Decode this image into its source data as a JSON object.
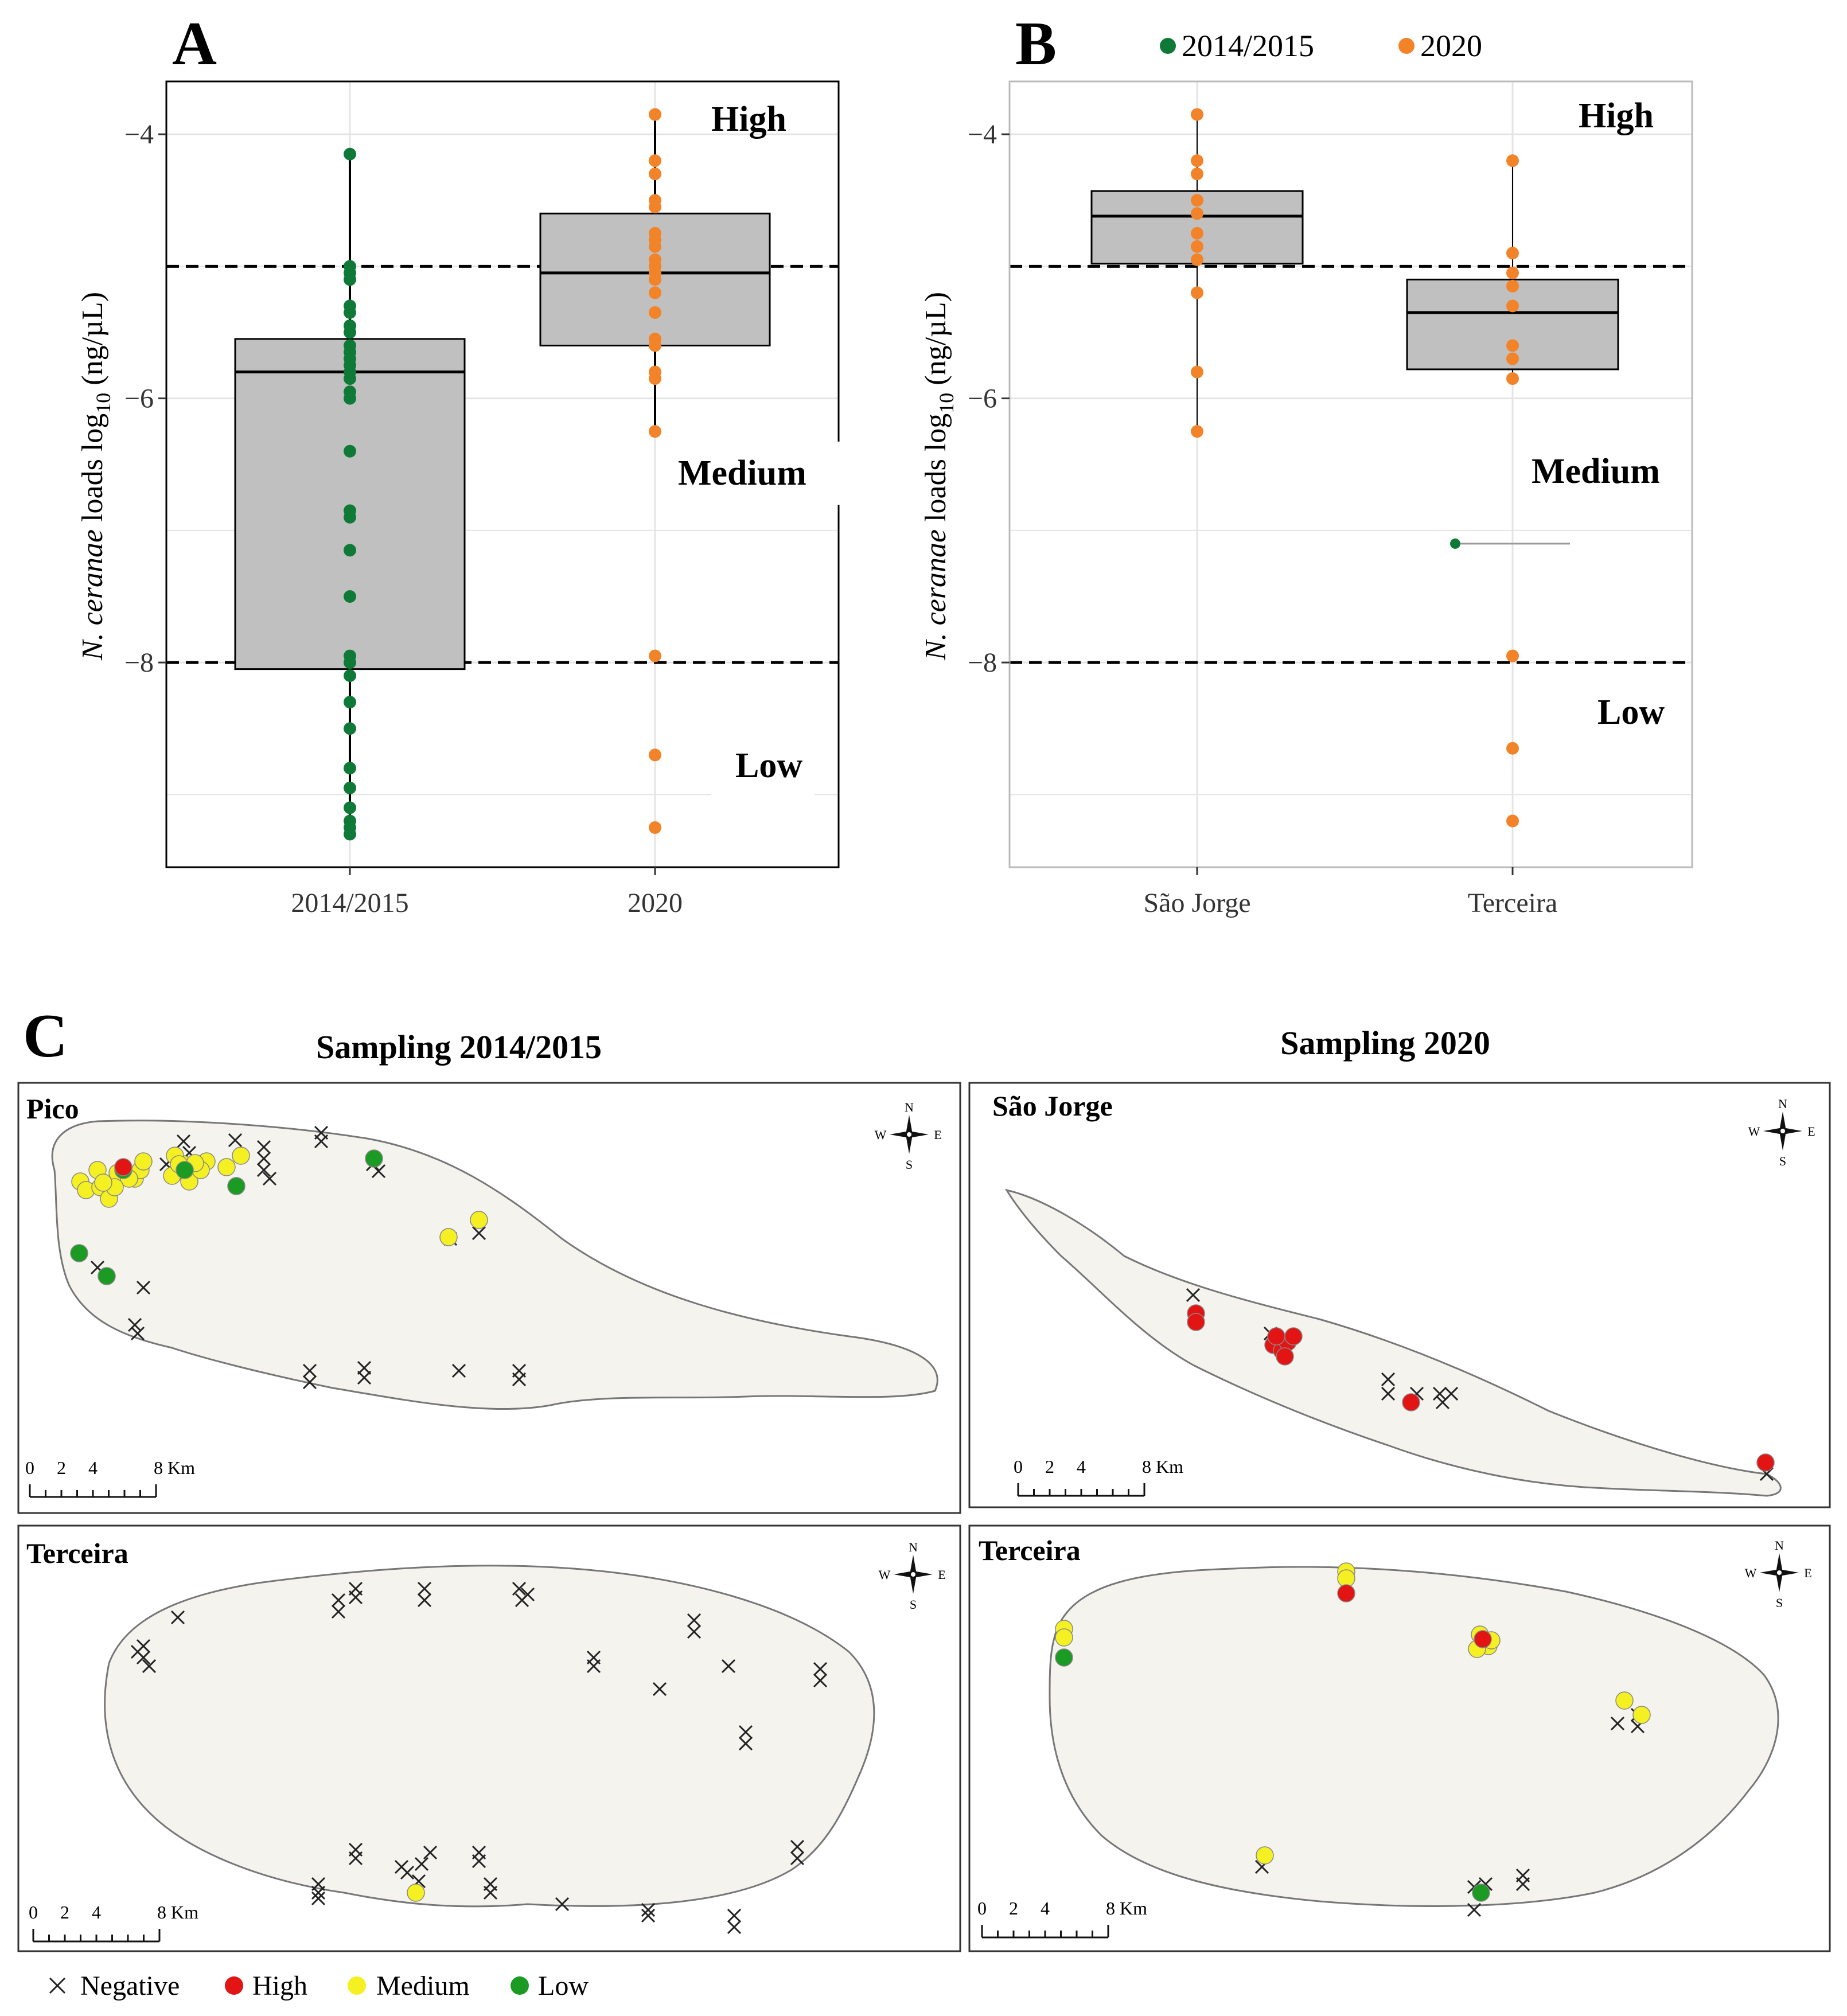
{
  "colors": {
    "series_2014": "#0f7a37",
    "series_2020": "#f28329",
    "box_fill": "#c0c0c0",
    "island": "#f5f3ee",
    "high": "#e31414",
    "medium": "#f4f022",
    "low": "#1b9a24",
    "negative": "#222222"
  },
  "legend_B": [
    {
      "label": "2014/2015",
      "color": "#0f7a37"
    },
    {
      "label": "2020",
      "color": "#f28329"
    }
  ],
  "chart_data": [
    {
      "panel": "A",
      "type": "box",
      "title": "",
      "ylabel_prefix": "N. ceranae",
      "ylabel_main": " loads log",
      "ylabel_sub": "10",
      "ylabel_suffix": " (ng/µL)",
      "categories": [
        "2014/2015",
        "2020"
      ],
      "ylim": [
        -9.55,
        -3.6
      ],
      "yticks": [
        -4,
        -6,
        -8
      ],
      "thresholds": [
        -5,
        -8
      ],
      "zone_labels": [
        "High",
        "Medium",
        "Low"
      ],
      "grid": true,
      "series": [
        {
          "category": "2014/2015",
          "color": "#0f7a37",
          "q1": -8.05,
          "median": -5.8,
          "q3": -5.55,
          "whisker_low": -9.3,
          "whisker_high": -4.15,
          "points": [
            -4.15,
            -5.0,
            -5.05,
            -5.1,
            -5.3,
            -5.35,
            -5.45,
            -5.5,
            -5.6,
            -5.65,
            -5.7,
            -5.75,
            -5.8,
            -5.85,
            -5.95,
            -6.0,
            -6.4,
            -6.85,
            -6.9,
            -7.15,
            -7.5,
            -7.95,
            -8.0,
            -8.1,
            -8.3,
            -8.5,
            -8.8,
            -8.95,
            -9.1,
            -9.2,
            -9.25,
            -9.3
          ]
        },
        {
          "category": "2020",
          "color": "#f28329",
          "q1": -5.6,
          "median": -5.05,
          "q3": -4.6,
          "whisker_low": -6.25,
          "whisker_high": -3.85,
          "points": [
            -3.85,
            -4.2,
            -4.3,
            -4.5,
            -4.55,
            -4.75,
            -4.8,
            -4.85,
            -4.95,
            -5.0,
            -5.05,
            -5.1,
            -5.2,
            -5.35,
            -5.55,
            -5.6,
            -5.8,
            -5.85,
            -6.25,
            -7.95,
            -8.7,
            -9.25
          ]
        }
      ]
    },
    {
      "panel": "B",
      "type": "box",
      "title": "",
      "ylabel_prefix": "N. ceranae",
      "ylabel_main": " loads log",
      "ylabel_sub": "10",
      "ylabel_suffix": " (ng/µL)",
      "categories": [
        "São Jorge",
        "Terceira"
      ],
      "ylim": [
        -9.55,
        -3.6
      ],
      "yticks": [
        -4,
        -6,
        -8
      ],
      "thresholds": [
        -5,
        -8
      ],
      "zone_labels": [
        "High",
        "Medium",
        "Low"
      ],
      "grid": true,
      "series": [
        {
          "category": "São Jorge",
          "color": "#f28329",
          "q1": -4.98,
          "median": -4.62,
          "q3": -4.43,
          "whisker_low": -6.25,
          "whisker_high": -3.85,
          "points": [
            -3.85,
            -4.2,
            -4.3,
            -4.5,
            -4.6,
            -4.75,
            -4.85,
            -4.95,
            -5.2,
            -5.8,
            -6.25
          ]
        },
        {
          "category": "Terceira",
          "color": "#f28329",
          "q1": -5.78,
          "median": -5.35,
          "q3": -5.1,
          "whisker_low": -5.85,
          "whisker_high": -4.2,
          "points": [
            -4.2,
            -4.9,
            -5.05,
            -5.15,
            -5.3,
            -5.6,
            -5.7,
            -5.85,
            -7.95,
            -8.65,
            -9.2
          ]
        },
        {
          "category": "Terceira",
          "series_name": "2014/2015",
          "color": "#0f7a37",
          "single_value": -7.1,
          "points": [
            -7.1
          ]
        }
      ]
    },
    {
      "panel": "C",
      "type": "map",
      "title_left": "Sampling 2014/2015",
      "title_right": "Sampling 2020",
      "maps": [
        {
          "name": "Pico",
          "scale_label": "8 Km",
          "scale_ticks": [
            "0",
            "2",
            "4"
          ]
        },
        {
          "name": "São Jorge",
          "scale_label": "8 Km",
          "scale_ticks": [
            "0",
            "2",
            "4"
          ]
        },
        {
          "name": "Terceira",
          "scale_label": "8 Km",
          "scale_ticks": [
            "0",
            "2",
            "4"
          ]
        },
        {
          "name": "Terceira",
          "scale_label": "8 Km",
          "scale_ticks": [
            "0",
            "2",
            "4"
          ]
        }
      ],
      "compass": {
        "n": "N",
        "s": "S",
        "e": "E",
        "w": "W"
      },
      "legend": [
        {
          "label": "Negative",
          "marker": "cross"
        },
        {
          "label": "High",
          "marker": "dot",
          "color": "#e31414"
        },
        {
          "label": "Medium",
          "marker": "dot",
          "color": "#f4f022"
        },
        {
          "label": "Low",
          "marker": "dot",
          "color": "#1b9a24"
        }
      ]
    }
  ],
  "panel_letters": [
    "A",
    "B",
    "C"
  ]
}
